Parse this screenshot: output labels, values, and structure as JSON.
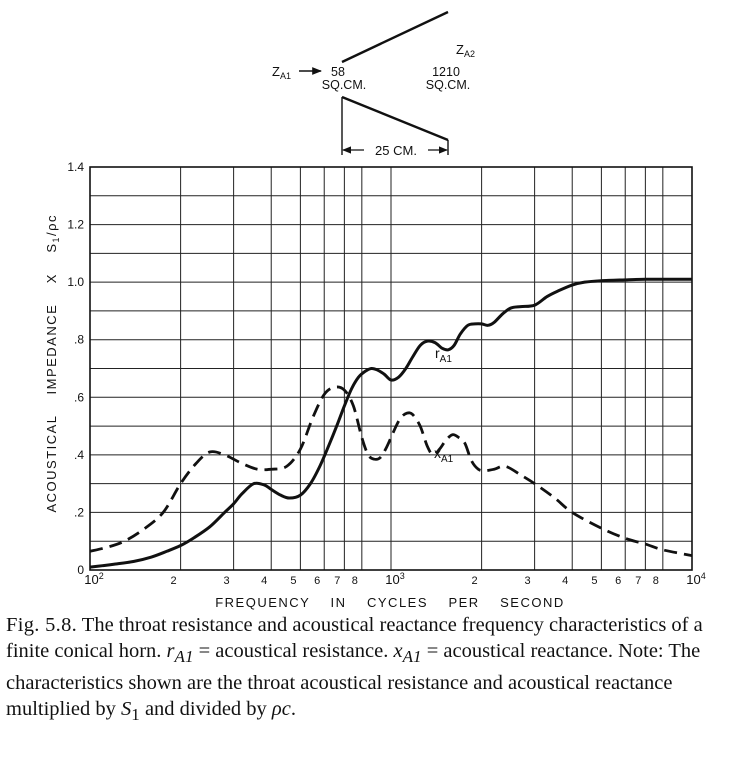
{
  "diagram": {
    "z_a1": "Z",
    "z_a1_sub": "A1",
    "z_a2": "Z",
    "z_a2_sub": "A2",
    "left_area_value": "58",
    "left_area_unit": "SQ.CM.",
    "right_area_value": "1210",
    "right_area_unit": "SQ.CM.",
    "length_label": "25 CM."
  },
  "chart_data": {
    "type": "line",
    "xscale": "log",
    "xlim": [
      100,
      10000
    ],
    "ylim": [
      0,
      1.4
    ],
    "grid": true,
    "xlabel": "FREQUENCY    IN    CYCLES    PER    SECOND",
    "ylabel": "ACOUSTICAL    IMPEDANCE    X    S",
    "ylabel_sub": "1",
    "ylabel_tail": "/ρc",
    "y_ticks": [
      {
        "value": 0,
        "label": "0"
      },
      {
        "value": 0.2,
        "label": ".2"
      },
      {
        "value": 0.4,
        "label": ".4"
      },
      {
        "value": 0.6,
        "label": ".6"
      },
      {
        "value": 0.8,
        "label": ".8"
      },
      {
        "value": 1.0,
        "label": "1.0"
      },
      {
        "value": 1.2,
        "label": "1.2"
      },
      {
        "value": 1.4,
        "label": "1.4"
      }
    ],
    "x_ticks": [
      {
        "value": 100,
        "label": "10",
        "exp": "2"
      },
      {
        "value": 200,
        "label": "2"
      },
      {
        "value": 300,
        "label": "3"
      },
      {
        "value": 400,
        "label": "4"
      },
      {
        "value": 500,
        "label": "5"
      },
      {
        "value": 600,
        "label": "6"
      },
      {
        "value": 700,
        "label": "7"
      },
      {
        "value": 800,
        "label": "8"
      },
      {
        "value": 1000,
        "label": "10",
        "exp": "3"
      },
      {
        "value": 2000,
        "label": "2"
      },
      {
        "value": 3000,
        "label": "3"
      },
      {
        "value": 4000,
        "label": "4"
      },
      {
        "value": 5000,
        "label": "5"
      },
      {
        "value": 6000,
        "label": "6"
      },
      {
        "value": 7000,
        "label": "7"
      },
      {
        "value": 8000,
        "label": "8"
      },
      {
        "value": 10000,
        "label": "10",
        "exp": "4"
      }
    ],
    "series": [
      {
        "name": "r",
        "name_sub": "A1",
        "style": "solid",
        "x": [
          100,
          110,
          120,
          140,
          160,
          180,
          200,
          220,
          250,
          280,
          300,
          320,
          350,
          380,
          400,
          430,
          460,
          500,
          540,
          580,
          620,
          660,
          700,
          740,
          780,
          820,
          860,
          900,
          950,
          1000,
          1060,
          1120,
          1180,
          1250,
          1320,
          1400,
          1480,
          1550,
          1620,
          1700,
          1800,
          1900,
          2000,
          2100,
          2200,
          2350,
          2500,
          2700,
          3000,
          3300,
          3600,
          4000,
          4400,
          5000,
          6000,
          7000,
          8000,
          10000
        ],
        "y": [
          0.01,
          0.015,
          0.02,
          0.03,
          0.045,
          0.065,
          0.085,
          0.11,
          0.15,
          0.2,
          0.23,
          0.265,
          0.3,
          0.295,
          0.28,
          0.26,
          0.25,
          0.26,
          0.3,
          0.36,
          0.43,
          0.5,
          0.57,
          0.63,
          0.67,
          0.69,
          0.7,
          0.695,
          0.68,
          0.66,
          0.67,
          0.7,
          0.74,
          0.78,
          0.795,
          0.79,
          0.77,
          0.765,
          0.78,
          0.82,
          0.85,
          0.855,
          0.855,
          0.85,
          0.86,
          0.89,
          0.91,
          0.915,
          0.92,
          0.95,
          0.97,
          0.99,
          1.0,
          1.005,
          1.008,
          1.01,
          1.01,
          1.01
        ]
      },
      {
        "name": "x",
        "name_sub": "A1",
        "style": "dashed",
        "x": [
          100,
          115,
          130,
          150,
          175,
          200,
          225,
          250,
          280,
          320,
          360,
          400,
          450,
          500,
          550,
          600,
          650,
          700,
          750,
          800,
          840,
          880,
          920,
          960,
          1000,
          1040,
          1080,
          1130,
          1180,
          1250,
          1320,
          1380,
          1450,
          1520,
          1600,
          1680,
          1760,
          1850,
          1950,
          2050,
          2200,
          2400,
          2700,
          3000,
          3500,
          4000,
          5000,
          6000,
          7000,
          8000,
          10000
        ],
        "y": [
          0.065,
          0.08,
          0.1,
          0.14,
          0.2,
          0.3,
          0.37,
          0.41,
          0.4,
          0.37,
          0.35,
          0.35,
          0.36,
          0.42,
          0.53,
          0.61,
          0.635,
          0.625,
          0.57,
          0.46,
          0.4,
          0.385,
          0.39,
          0.42,
          0.46,
          0.5,
          0.53,
          0.545,
          0.54,
          0.5,
          0.43,
          0.4,
          0.42,
          0.45,
          0.47,
          0.46,
          0.44,
          0.38,
          0.35,
          0.345,
          0.35,
          0.36,
          0.33,
          0.3,
          0.25,
          0.2,
          0.145,
          0.11,
          0.09,
          0.07,
          0.05
        ]
      }
    ]
  },
  "caption": {
    "lead": "Fig. 5.8.",
    "text_1": " The throat resistance and acoustical reactance frequency characteristics of a finite conical horn.  ",
    "r_sym": "r",
    "r_sub": "A1",
    "text_2": " = acoustical resistance.  ",
    "x_sym": "x",
    "x_sub": "A1",
    "text_3": " = acoustical reactance.  Note: The characteristics shown are the throat acoustical resistance and acoustical reactance multiplied by ",
    "s_sym": "S",
    "s_sub": "1",
    "text_4": " and divided by ",
    "pc_sym": "ρc",
    "text_5": "."
  }
}
